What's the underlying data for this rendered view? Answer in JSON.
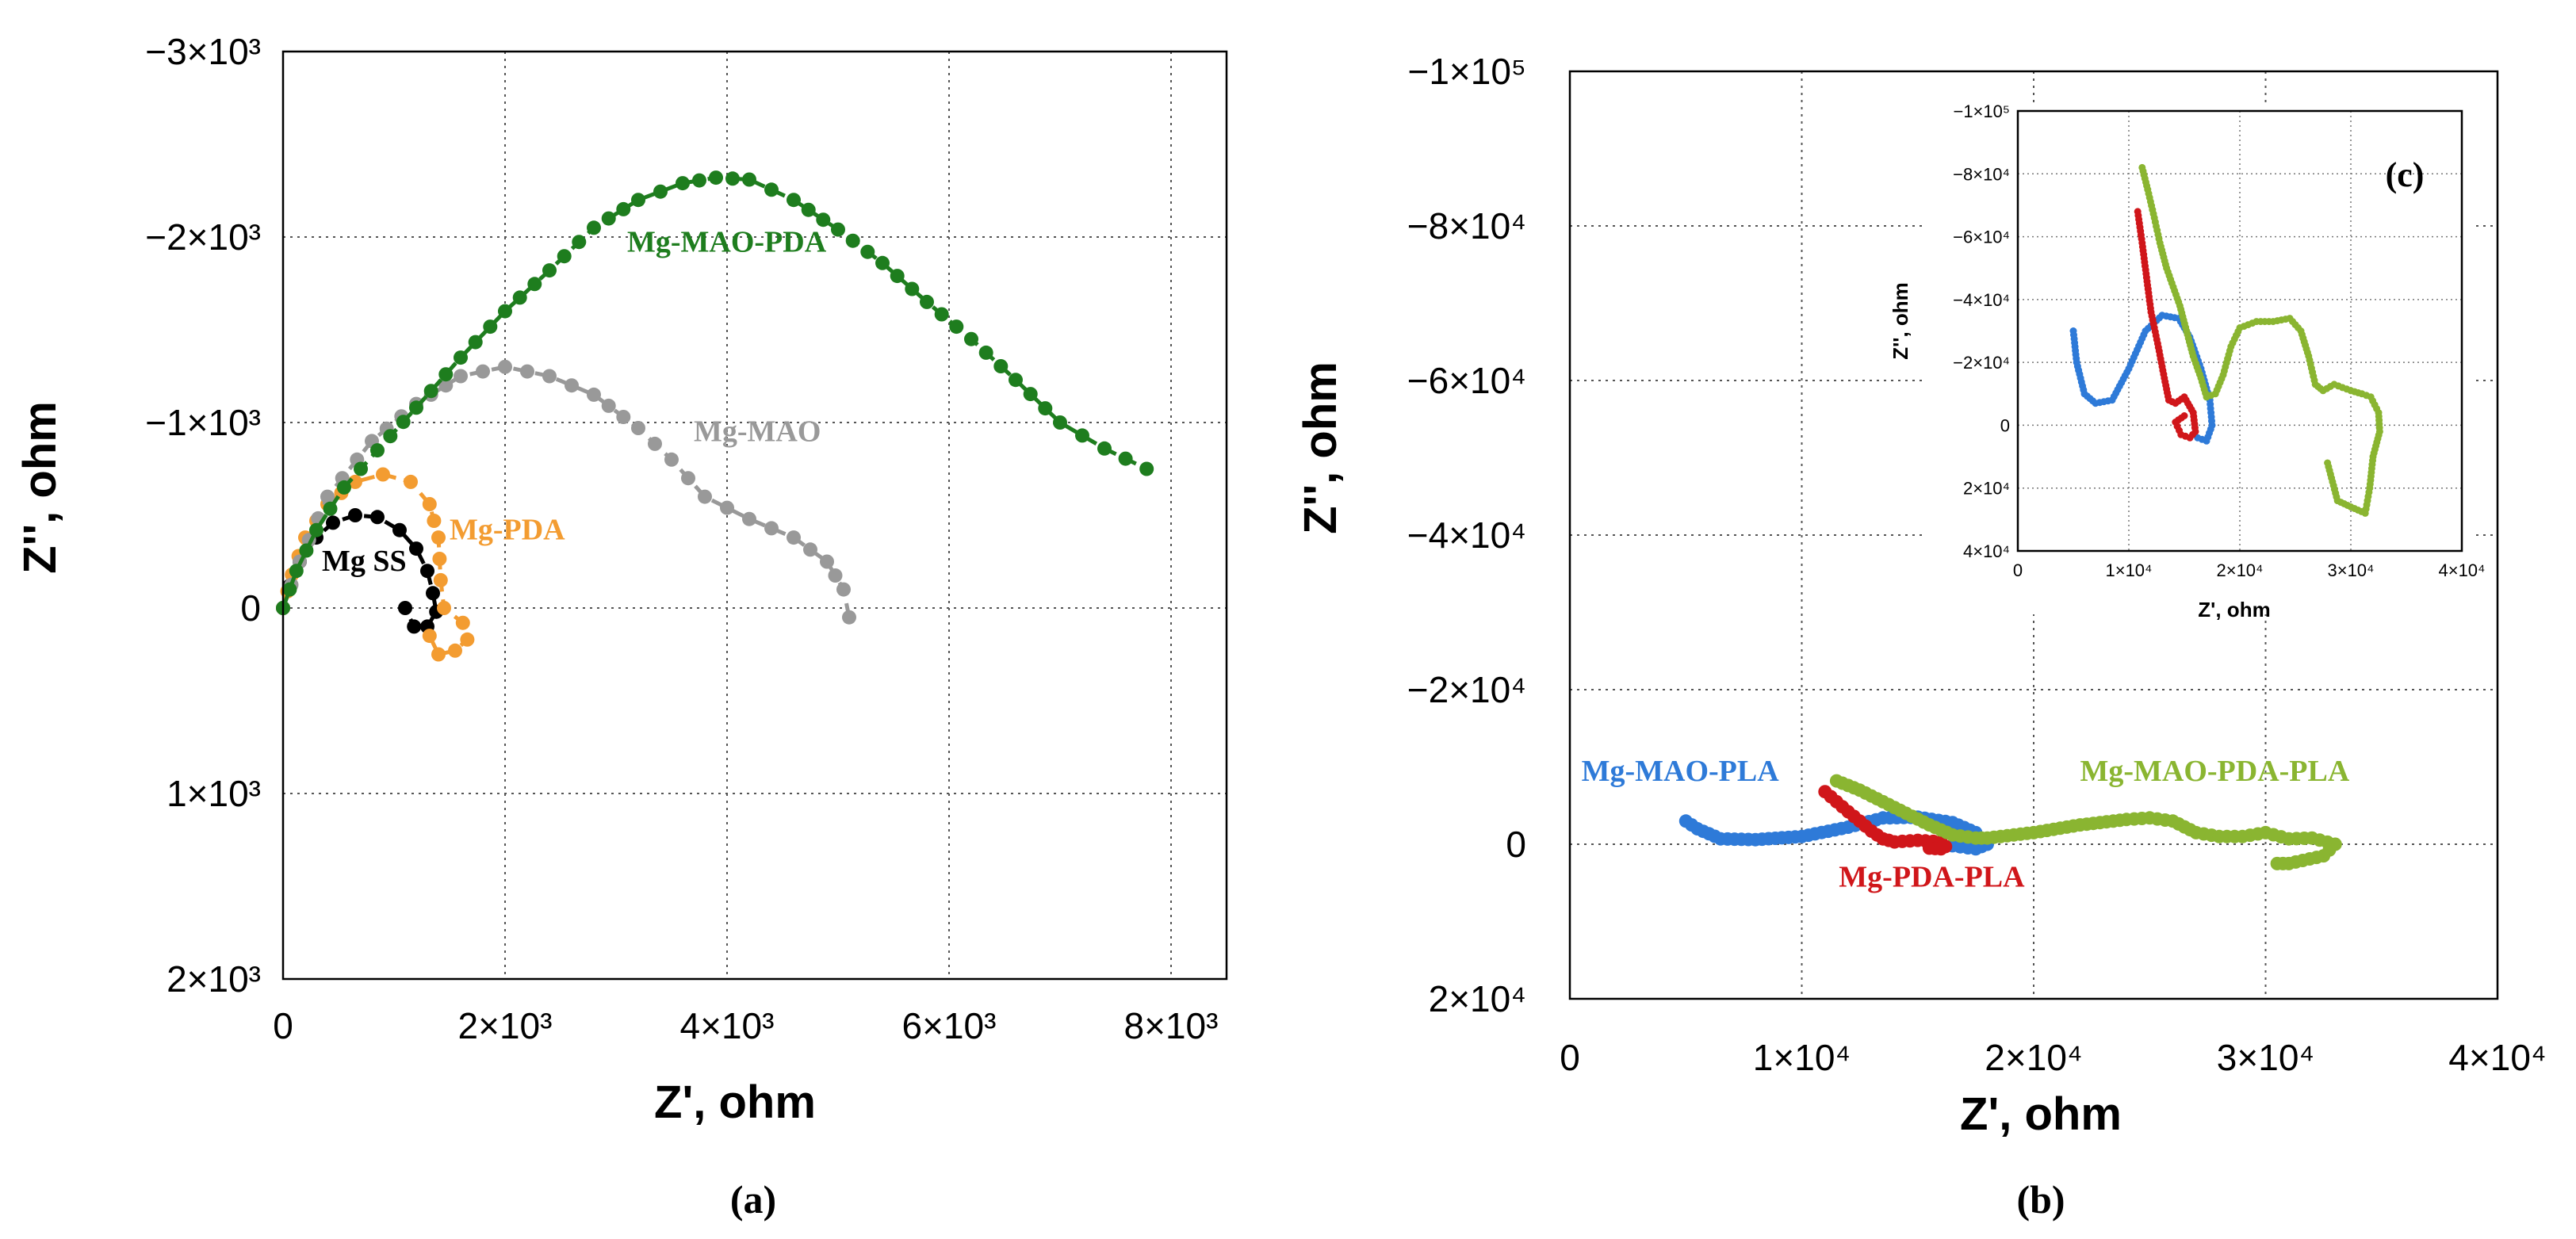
{
  "chart_data": [
    {
      "panel": "(a)",
      "type": "scatter",
      "xlabel": "Z', ohm",
      "ylabel": "Z'', ohm",
      "xlim": [
        0,
        8500
      ],
      "ylim": [
        2000,
        -3000
      ],
      "x_ticks": [
        0,
        2000,
        4000,
        6000,
        8000
      ],
      "x_tick_labels": [
        "0",
        "2×10³",
        "4×10³",
        "6×10³",
        "8×10³"
      ],
      "y_ticks": [
        -3000,
        -2000,
        -1000,
        0,
        1000,
        2000
      ],
      "y_tick_labels": [
        "−3×10³",
        "−2×10³",
        "−1×10³",
        "0",
        "1×10³",
        "2×10³"
      ],
      "series": [
        {
          "name": "Mg SS",
          "color": "#000000",
          "label_at": [
            350,
            -200
          ],
          "points": [
            [
              0,
              0
            ],
            [
              60,
              -120
            ],
            [
              150,
              -250
            ],
            [
              300,
              -380
            ],
            [
              450,
              -460
            ],
            [
              650,
              -500
            ],
            [
              850,
              -490
            ],
            [
              1050,
              -420
            ],
            [
              1200,
              -320
            ],
            [
              1300,
              -200
            ],
            [
              1350,
              -80
            ],
            [
              1380,
              20
            ],
            [
              1300,
              100
            ],
            [
              1180,
              100
            ],
            [
              1100,
              0
            ]
          ]
        },
        {
          "name": "Mg-PDA",
          "color": "#f39c31",
          "label_at": [
            1500,
            -370
          ],
          "points": [
            [
              0,
              0
            ],
            [
              80,
              -180
            ],
            [
              200,
              -380
            ],
            [
              400,
              -560
            ],
            [
              650,
              -680
            ],
            [
              900,
              -720
            ],
            [
              1150,
              -680
            ],
            [
              1320,
              -560
            ],
            [
              1400,
              -380
            ],
            [
              1420,
              -150
            ],
            [
              1450,
              0
            ],
            [
              1620,
              80
            ],
            [
              1660,
              170
            ],
            [
              1550,
              230
            ],
            [
              1400,
              250
            ],
            [
              1320,
              150
            ]
          ]
        },
        {
          "name": "Mg-MAO",
          "color": "#999999",
          "label_at": [
            3700,
            -900
          ],
          "points": [
            [
              0,
              0
            ],
            [
              150,
              -250
            ],
            [
              400,
              -600
            ],
            [
              800,
              -900
            ],
            [
              1200,
              -1100
            ],
            [
              1600,
              -1250
            ],
            [
              2000,
              -1300
            ],
            [
              2400,
              -1250
            ],
            [
              2800,
              -1150
            ],
            [
              3200,
              -970
            ],
            [
              3500,
              -800
            ],
            [
              3800,
              -600
            ],
            [
              4200,
              -480
            ],
            [
              4600,
              -380
            ],
            [
              4900,
              -250
            ],
            [
              5050,
              -100
            ],
            [
              5100,
              50
            ]
          ]
        },
        {
          "name": "Mg-MAO-PDA",
          "color": "#1e7d1e",
          "label_at": [
            3100,
            -1920
          ],
          "points": [
            [
              0,
              0
            ],
            [
              120,
              -200
            ],
            [
              300,
              -420
            ],
            [
              550,
              -650
            ],
            [
              850,
              -850
            ],
            [
              1200,
              -1080
            ],
            [
              1600,
              -1350
            ],
            [
              2000,
              -1600
            ],
            [
              2400,
              -1820
            ],
            [
              2800,
              -2050
            ],
            [
              3200,
              -2200
            ],
            [
              3600,
              -2290
            ],
            [
              3900,
              -2320
            ],
            [
              4200,
              -2310
            ],
            [
              4600,
              -2200
            ],
            [
              5000,
              -2040
            ],
            [
              5400,
              -1860
            ],
            [
              5800,
              -1650
            ],
            [
              6200,
              -1450
            ],
            [
              6600,
              -1230
            ],
            [
              7000,
              -1000
            ],
            [
              7400,
              -860
            ],
            [
              7780,
              -750
            ]
          ]
        }
      ]
    },
    {
      "panel": "(b)",
      "type": "scatter",
      "xlabel": "Z', ohm",
      "ylabel": "Z'', ohm",
      "xlim": [
        0,
        40000
      ],
      "ylim": [
        20000,
        -100000
      ],
      "x_ticks": [
        0,
        10000,
        20000,
        30000,
        40000
      ],
      "x_tick_labels": [
        "0",
        "1×10⁴",
        "2×10⁴",
        "3×10⁴",
        "4×10⁴"
      ],
      "y_ticks": [
        -100000,
        -80000,
        -60000,
        -40000,
        -20000,
        0,
        20000
      ],
      "y_tick_labels": [
        "−1×10⁵",
        "−8×10⁴",
        "−6×10⁴",
        "−4×10⁴",
        "−2×10⁴",
        "0",
        "2×10⁴"
      ],
      "series": [
        {
          "name": "Mg-MAO-PLA",
          "color": "#2e7ad8",
          "label_at": [
            500,
            -8200
          ],
          "points": [
            [
              5000,
              -3000
            ],
            [
              5500,
              -2000
            ],
            [
              6500,
              -700
            ],
            [
              8000,
              -600
            ],
            [
              10000,
              -1000
            ],
            [
              12000,
              -2200
            ],
            [
              13500,
              -3400
            ],
            [
              15000,
              -3500
            ],
            [
              16500,
              -2800
            ],
            [
              17500,
              -1500
            ],
            [
              18000,
              0
            ],
            [
              17500,
              600
            ],
            [
              16500,
              200
            ]
          ]
        },
        {
          "name": "Mg-PDA-PLA",
          "color": "#d0161a",
          "label_at": [
            11600,
            5500
          ],
          "points": [
            [
              11000,
              -6800
            ],
            [
              11500,
              -5500
            ],
            [
              12000,
              -4200
            ],
            [
              12500,
              -3000
            ],
            [
              13000,
              -1700
            ],
            [
              13500,
              -700
            ],
            [
              14000,
              -300
            ],
            [
              15000,
              -500
            ],
            [
              16000,
              -300
            ],
            [
              16200,
              300
            ],
            [
              16000,
              600
            ],
            [
              15500,
              500
            ]
          ]
        },
        {
          "name": "Mg-MAO-PDA-PLA",
          "color": "#8ab531",
          "label_at": [
            22000,
            -8200
          ],
          "points": [
            [
              11500,
              -8200
            ],
            [
              12500,
              -7000
            ],
            [
              13500,
              -5500
            ],
            [
              14500,
              -4000
            ],
            [
              15500,
              -2500
            ],
            [
              16500,
              -1200
            ],
            [
              17500,
              -800
            ],
            [
              18000,
              -800
            ],
            [
              20000,
              -1500
            ],
            [
              22000,
              -2500
            ],
            [
              24000,
              -3200
            ],
            [
              25000,
              -3400
            ],
            [
              26000,
              -3000
            ],
            [
              27000,
              -1500
            ],
            [
              28000,
              -1000
            ],
            [
              29000,
              -1000
            ],
            [
              30000,
              -1500
            ],
            [
              31000,
              -700
            ],
            [
              32000,
              -800
            ],
            [
              33000,
              0
            ],
            [
              32500,
              1500
            ],
            [
              31000,
              2500
            ],
            [
              30500,
              2500
            ]
          ]
        }
      ],
      "inset": {
        "panel": "(c)",
        "xlabel": "Z', ohm",
        "ylabel": "Z'', ohm",
        "xlim": [
          0,
          40000
        ],
        "ylim": [
          40000,
          -100000
        ],
        "x_ticks": [
          0,
          10000,
          20000,
          30000,
          40000
        ],
        "x_tick_labels": [
          "0",
          "1×10⁴",
          "2×10⁴",
          "3×10⁴",
          "4×10⁴"
        ],
        "y_ticks": [
          -100000,
          -80000,
          -60000,
          -40000,
          -20000,
          0,
          20000,
          40000
        ],
        "y_tick_labels": [
          "−1×10⁵",
          "−8×10⁴",
          "−6×10⁴",
          "−4×10⁴",
          "−2×10⁴",
          "0",
          "2×10⁴",
          "4×10⁴"
        ],
        "series": [
          {
            "name": "Mg-MAO-PLA",
            "color": "#2e7ad8",
            "points": [
              [
                5000,
                -30000
              ],
              [
                5300,
                -20000
              ],
              [
                6000,
                -10000
              ],
              [
                7000,
                -7000
              ],
              [
                8500,
                -8000
              ],
              [
                10000,
                -18000
              ],
              [
                11500,
                -30000
              ],
              [
                13000,
                -35000
              ],
              [
                14500,
                -34000
              ],
              [
                15500,
                -28000
              ],
              [
                16500,
                -18000
              ],
              [
                17300,
                -8000
              ],
              [
                17500,
                0
              ],
              [
                17000,
                5000
              ],
              [
                16200,
                4000
              ]
            ]
          },
          {
            "name": "Mg-PDA-PLA",
            "color": "#d0161a",
            "points": [
              [
                10800,
                -68000
              ],
              [
                11200,
                -58000
              ],
              [
                11600,
                -47000
              ],
              [
                12000,
                -36000
              ],
              [
                12600,
                -26000
              ],
              [
                13200,
                -15000
              ],
              [
                13600,
                -8000
              ],
              [
                14200,
                -7000
              ],
              [
                15000,
                -9000
              ],
              [
                15800,
                -4000
              ],
              [
                16000,
                2000
              ],
              [
                15500,
                4000
              ],
              [
                14700,
                3000
              ],
              [
                14200,
                -1000
              ],
              [
                15000,
                -3000
              ]
            ]
          },
          {
            "name": "Mg-MAO-PDA-PLA",
            "color": "#8ab531",
            "points": [
              [
                11200,
                -82000
              ],
              [
                11700,
                -75000
              ],
              [
                12300,
                -66000
              ],
              [
                12800,
                -58000
              ],
              [
                13400,
                -50000
              ],
              [
                14000,
                -44000
              ],
              [
                14600,
                -38000
              ],
              [
                15200,
                -30000
              ],
              [
                15800,
                -22000
              ],
              [
                16500,
                -15000
              ],
              [
                17000,
                -9000
              ],
              [
                17800,
                -10000
              ],
              [
                18500,
                -16000
              ],
              [
                19200,
                -25000
              ],
              [
                20000,
                -31000
              ],
              [
                21500,
                -33000
              ],
              [
                23000,
                -33000
              ],
              [
                24500,
                -34000
              ],
              [
                25500,
                -30000
              ],
              [
                26200,
                -22000
              ],
              [
                26800,
                -13000
              ],
              [
                27500,
                -11000
              ],
              [
                28500,
                -13000
              ],
              [
                30000,
                -11000
              ],
              [
                31000,
                -10000
              ],
              [
                31800,
                -9000
              ],
              [
                32500,
                -4000
              ],
              [
                32600,
                2000
              ],
              [
                32000,
                10000
              ],
              [
                31700,
                20000
              ],
              [
                31300,
                28000
              ],
              [
                30000,
                26000
              ],
              [
                28800,
                24000
              ],
              [
                27900,
                12000
              ]
            ]
          }
        ]
      }
    }
  ]
}
